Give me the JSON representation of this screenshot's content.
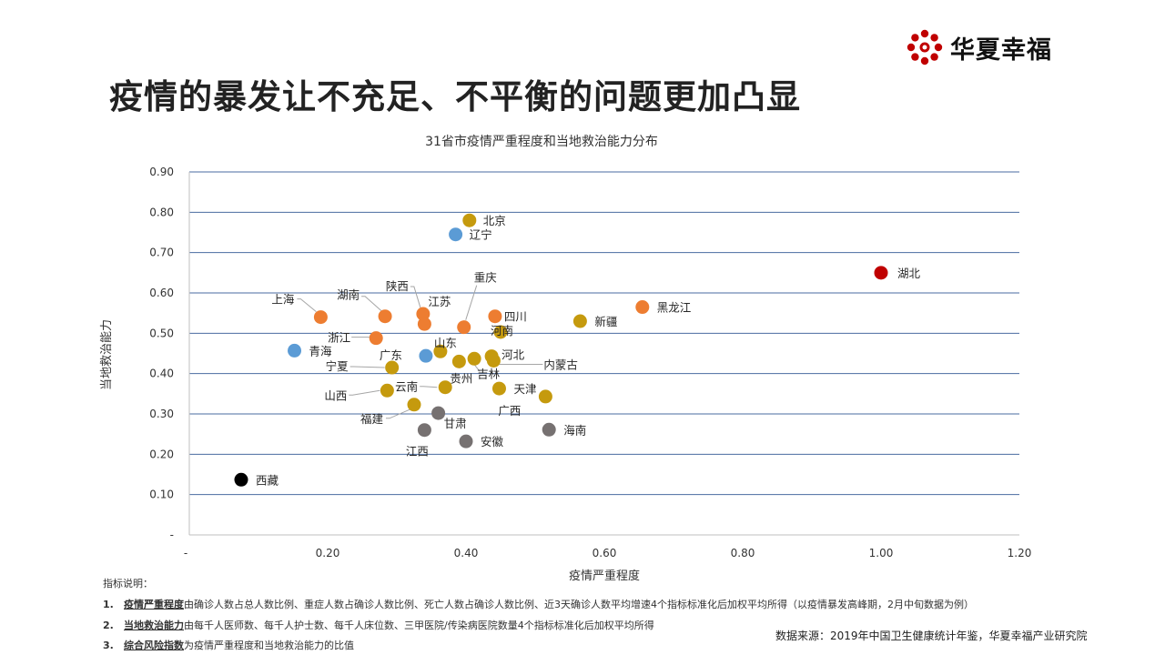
{
  "page": {
    "title": "疫情的暴发让不充足、不平衡的问题更加凸显",
    "logo_text": "华夏幸福",
    "source": "数据来源：2019年中国卫生健康统计年鉴，华夏幸福产业研究院"
  },
  "notes": {
    "header": "指标说明：",
    "items": [
      {
        "num": "1.",
        "key": "疫情严重程度",
        "text": "由确诊人数占总人数比例、重症人数占确诊人数比例、死亡人数占确诊人数比例、近3天确诊人数平均增速4个指标标准化后加权平均所得（以疫情暴发高峰期，2月中旬数据为例）"
      },
      {
        "num": "2.",
        "key": "当地救治能力",
        "text": "由每千人医师数、每千人护士数、每千人床位数、三甲医院/传染病医院数量4个指标标准化后加权平均所得"
      },
      {
        "num": "3.",
        "key": "综合风险指数",
        "text": "为疫情严重程度和当地救治能力的比值"
      }
    ]
  },
  "colors": {
    "orange": "#ED7D31",
    "gold": "#C59A0E",
    "blue": "#5B9BD5",
    "gray": "#767171",
    "red": "#C00000",
    "black": "#000000",
    "grid": "#4A6BA0",
    "axis": "#BFBFBF"
  },
  "chart_data": {
    "type": "scatter",
    "title": "31省市疫情严重程度和当地救治能力分布",
    "xlabel": "疫情严重程度",
    "ylabel": "当地救治能力",
    "xlim": [
      0,
      1.2
    ],
    "ylim": [
      0,
      0.9
    ],
    "xticks": [
      {
        "v": 0,
        "label": "-"
      },
      {
        "v": 0.2,
        "label": "0.20"
      },
      {
        "v": 0.4,
        "label": "0.40"
      },
      {
        "v": 0.6,
        "label": "0.60"
      },
      {
        "v": 0.8,
        "label": "0.80"
      },
      {
        "v": 1.0,
        "label": "1.00"
      },
      {
        "v": 1.2,
        "label": "1.20"
      }
    ],
    "yticks": [
      {
        "v": 0,
        "label": "-"
      },
      {
        "v": 0.1,
        "label": "0.10"
      },
      {
        "v": 0.2,
        "label": "0.20"
      },
      {
        "v": 0.3,
        "label": "0.30"
      },
      {
        "v": 0.4,
        "label": "0.40"
      },
      {
        "v": 0.5,
        "label": "0.50"
      },
      {
        "v": 0.6,
        "label": "0.60"
      },
      {
        "v": 0.7,
        "label": "0.70"
      },
      {
        "v": 0.8,
        "label": "0.80"
      },
      {
        "v": 0.9,
        "label": "0.90"
      }
    ],
    "grid": true,
    "points": [
      {
        "name": "北京",
        "x": 0.405,
        "y": 0.78,
        "color": "gold"
      },
      {
        "name": "辽宁",
        "x": 0.385,
        "y": 0.745,
        "color": "blue"
      },
      {
        "name": "湖北",
        "x": 1.0,
        "y": 0.65,
        "color": "red"
      },
      {
        "name": "黑龙江",
        "x": 0.655,
        "y": 0.565,
        "color": "orange"
      },
      {
        "name": "上海",
        "x": 0.19,
        "y": 0.54,
        "color": "orange"
      },
      {
        "name": "湖南",
        "x": 0.283,
        "y": 0.542,
        "color": "orange"
      },
      {
        "name": "陕西",
        "x": 0.338,
        "y": 0.548,
        "color": "orange"
      },
      {
        "name": "江苏",
        "x": 0.34,
        "y": 0.523,
        "color": "orange"
      },
      {
        "name": "重庆",
        "x": 0.397,
        "y": 0.515,
        "color": "orange"
      },
      {
        "name": "四川",
        "x": 0.442,
        "y": 0.542,
        "color": "orange"
      },
      {
        "name": "新疆",
        "x": 0.565,
        "y": 0.53,
        "color": "gold"
      },
      {
        "name": "河南",
        "x": 0.45,
        "y": 0.503,
        "color": "gold"
      },
      {
        "name": "浙江",
        "x": 0.27,
        "y": 0.488,
        "color": "orange"
      },
      {
        "name": "青海",
        "x": 0.152,
        "y": 0.457,
        "color": "blue"
      },
      {
        "name": "山东",
        "x": 0.363,
        "y": 0.455,
        "color": "gold"
      },
      {
        "name": "广东",
        "x": 0.342,
        "y": 0.444,
        "color": "blue"
      },
      {
        "name": "河北",
        "x": 0.437,
        "y": 0.443,
        "color": "gold"
      },
      {
        "name": "吉林",
        "x": 0.412,
        "y": 0.437,
        "color": "gold"
      },
      {
        "name": "贵州",
        "x": 0.39,
        "y": 0.43,
        "color": "gold"
      },
      {
        "name": "内蒙古",
        "x": 0.44,
        "y": 0.432,
        "color": "gold"
      },
      {
        "name": "宁夏",
        "x": 0.293,
        "y": 0.415,
        "color": "gold"
      },
      {
        "name": "云南",
        "x": 0.37,
        "y": 0.366,
        "color": "gold"
      },
      {
        "name": "天津",
        "x": 0.448,
        "y": 0.363,
        "color": "gold"
      },
      {
        "name": "山西",
        "x": 0.286,
        "y": 0.358,
        "color": "gold"
      },
      {
        "name": "广西",
        "x": 0.515,
        "y": 0.343,
        "color": "gold"
      },
      {
        "name": "福建",
        "x": 0.325,
        "y": 0.323,
        "color": "gold"
      },
      {
        "name": "甘肃",
        "x": 0.36,
        "y": 0.302,
        "color": "gray"
      },
      {
        "name": "海南",
        "x": 0.52,
        "y": 0.261,
        "color": "gray"
      },
      {
        "name": "江西",
        "x": 0.34,
        "y": 0.26,
        "color": "gray"
      },
      {
        "name": "安徽",
        "x": 0.4,
        "y": 0.232,
        "color": "gray"
      },
      {
        "name": "西藏",
        "x": 0.075,
        "y": 0.137,
        "color": "black"
      }
    ]
  }
}
